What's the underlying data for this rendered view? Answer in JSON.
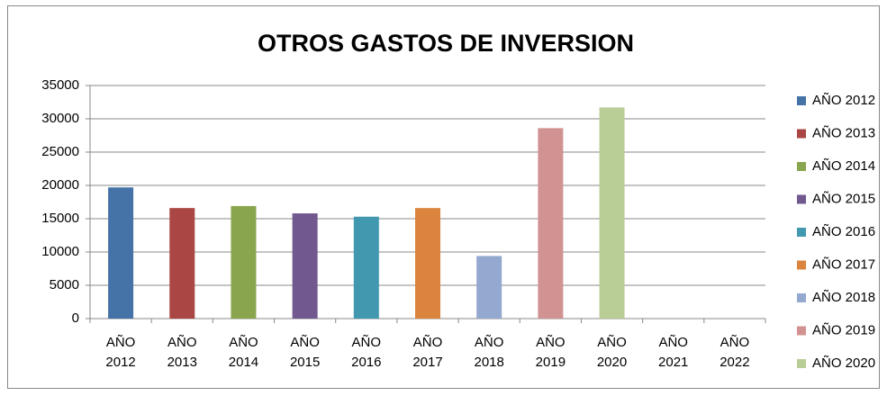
{
  "chart_data": {
    "type": "bar",
    "title": "OTROS GASTOS DE INVERSION",
    "categories": [
      "AÑO 2012",
      "AÑO 2013",
      "AÑO 2014",
      "AÑO 2015",
      "AÑO 2016",
      "AÑO 2017",
      "AÑO 2018",
      "AÑO 2019",
      "AÑO 2020",
      "AÑO 2021",
      "AÑO 2022"
    ],
    "series": [
      {
        "name": "AÑO 2012",
        "color": "#4572a7",
        "values": [
          19700,
          null,
          null,
          null,
          null,
          null,
          null,
          null,
          null,
          null,
          null
        ]
      },
      {
        "name": "AÑO 2013",
        "color": "#aa4643",
        "values": [
          null,
          16600,
          null,
          null,
          null,
          null,
          null,
          null,
          null,
          null,
          null
        ]
      },
      {
        "name": "AÑO 2014",
        "color": "#89a54e",
        "values": [
          null,
          null,
          16900,
          null,
          null,
          null,
          null,
          null,
          null,
          null,
          null
        ]
      },
      {
        "name": "AÑO 2015",
        "color": "#71588f",
        "values": [
          null,
          null,
          null,
          15800,
          null,
          null,
          null,
          null,
          null,
          null,
          null
        ]
      },
      {
        "name": "AÑO 2016",
        "color": "#4198af",
        "values": [
          null,
          null,
          null,
          null,
          15300,
          null,
          null,
          null,
          null,
          null,
          null
        ]
      },
      {
        "name": "AÑO 2017",
        "color": "#db843d",
        "values": [
          null,
          null,
          null,
          null,
          null,
          16600,
          null,
          null,
          null,
          null,
          null
        ]
      },
      {
        "name": "AÑO 2018",
        "color": "#93a9cf",
        "values": [
          null,
          null,
          null,
          null,
          null,
          null,
          9400,
          null,
          null,
          null,
          null
        ]
      },
      {
        "name": "AÑO 2019",
        "color": "#d19392",
        "values": [
          null,
          null,
          null,
          null,
          null,
          null,
          null,
          28600,
          null,
          null,
          null
        ]
      },
      {
        "name": "AÑO 2020",
        "color": "#b9cd96",
        "values": [
          null,
          null,
          null,
          null,
          null,
          null,
          null,
          null,
          31700,
          null,
          null
        ]
      }
    ],
    "ylim": [
      0,
      35000
    ],
    "yticks": [
      0,
      5000,
      10000,
      15000,
      20000,
      25000,
      30000,
      35000
    ],
    "grid": true,
    "legend": "right"
  }
}
